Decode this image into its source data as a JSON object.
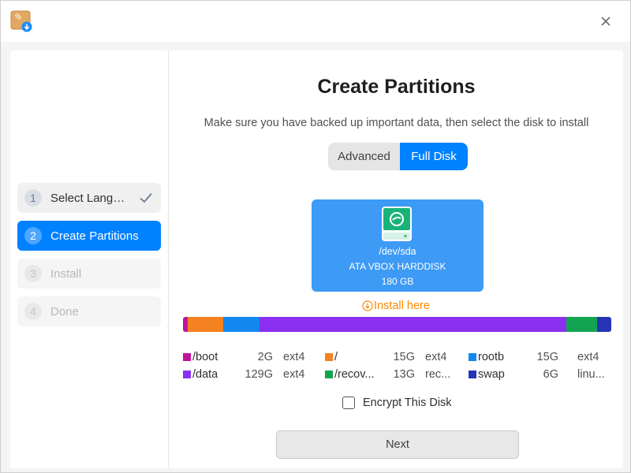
{
  "window": {
    "app_icon": "installer-package-icon",
    "close_icon": "close-icon"
  },
  "sidebar": {
    "steps": [
      {
        "num": "1",
        "label": "Select Language",
        "state": "done"
      },
      {
        "num": "2",
        "label": "Create Partitions",
        "state": "active"
      },
      {
        "num": "3",
        "label": "Install",
        "state": "pending"
      },
      {
        "num": "4",
        "label": "Done",
        "state": "pending"
      }
    ]
  },
  "main": {
    "title": "Create Partitions",
    "subtitle": "Make sure you have backed up important data, then select the disk to install",
    "mode_switch": {
      "advanced": "Advanced",
      "full_disk": "Full Disk",
      "selected": "full_disk"
    },
    "disk": {
      "name": "/dev/sda",
      "model": "ATA VBOX HARDDISK",
      "size": "180 GB",
      "icon": "hard-disk-icon"
    },
    "install_here": "Install here",
    "partitions": [
      {
        "name": "/boot",
        "size": "2G",
        "fs": "ext4",
        "color": "#c0149a"
      },
      {
        "name": "/",
        "size": "15G",
        "fs": "ext4",
        "color": "#f58220"
      },
      {
        "name": "rootb",
        "size": "15G",
        "fs": "ext4",
        "color": "#1388f0"
      },
      {
        "name": "/data",
        "size": "129G",
        "fs": "ext4",
        "color": "#8b2ff0"
      },
      {
        "name": "/recov...",
        "size": "13G",
        "fs": "rec...",
        "color": "#13a452"
      },
      {
        "name": "swap",
        "size": "6G",
        "fs": "linu...",
        "color": "#2634b8"
      }
    ],
    "encrypt_label": "Encrypt This Disk",
    "encrypt_checked": false,
    "next_label": "Next"
  },
  "colors": {
    "accent": "#0081ff",
    "disk_card": "#3d9af5",
    "install_hint": "#ff8a00"
  }
}
